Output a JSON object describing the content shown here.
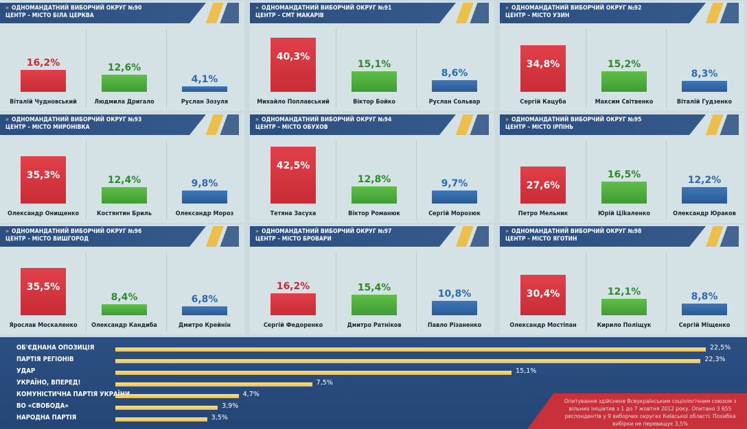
{
  "chart_data": [
    {
      "type": "bar",
      "title": "ОДНОМАНДАТНИЙ ВИБОРЧИЙ ОКРУГ №90",
      "subtitle": "ЦЕНТР – МІСТО БІЛА ЦЕРКВА",
      "categories": [
        "Віталій Чудновський",
        "Людмила Дригало",
        "Руслан Зозуля"
      ],
      "values": [
        16.2,
        12.6,
        4.1
      ],
      "labels": [
        "16,2%",
        "12,6%",
        "4,1%"
      ]
    },
    {
      "type": "bar",
      "title": "ОДНОМАНДАТНИЙ ВИБОРЧИЙ ОКРУГ №91",
      "subtitle": "ЦЕНТР – СМТ МАКАРІВ",
      "categories": [
        "Михайло Поплавський",
        "Віктор Бойко",
        "Руслан Сольвар"
      ],
      "values": [
        40.3,
        15.1,
        8.6
      ],
      "labels": [
        "40,3%",
        "15,1%",
        "8,6%"
      ]
    },
    {
      "type": "bar",
      "title": "ОДНОМАНДАТНИЙ ВИБОРЧИЙ ОКРУГ №92",
      "subtitle": "ЦЕНТР – МІСТО УЗИН",
      "categories": [
        "Сергій Кацуба",
        "Максим Світвенко",
        "Віталій Гудзенко"
      ],
      "values": [
        34.8,
        15.2,
        8.3
      ],
      "labels": [
        "34,8%",
        "15,2%",
        "8,3%"
      ]
    },
    {
      "type": "bar",
      "title": "ОДНОМАНДАТНИЙ ВИБОРЧИЙ ОКРУГ №93",
      "subtitle": "ЦЕНТР – МІСТО МИРОНІВКА",
      "categories": [
        "Олександр Онищенко",
        "Костянтин Бриль",
        "Олександр Мороз"
      ],
      "values": [
        35.3,
        12.4,
        9.8
      ],
      "labels": [
        "35,3%",
        "12,4%",
        "9,8%"
      ]
    },
    {
      "type": "bar",
      "title": "ОДНОМАНДАТНИЙ ВИБОРЧИЙ ОКРУГ №94",
      "subtitle": "ЦЕНТР – МІСТО ОБУХОВ",
      "categories": [
        "Тетяна Засуха",
        "Віктор Романюк",
        "Сергій Морозюк"
      ],
      "values": [
        42.5,
        12.8,
        9.7
      ],
      "labels": [
        "42,5%",
        "12,8%",
        "9,7%"
      ]
    },
    {
      "type": "bar",
      "title": "ОДНОМАНДАТНИЙ ВИБОРЧИЙ ОКРУГ №95",
      "subtitle": "ЦЕНТР – МІСТО ІРПІНЬ",
      "categories": [
        "Петро Мельник",
        "Юрій Ціkаленко",
        "Олександр Юраков"
      ],
      "values": [
        27.6,
        16.5,
        12.2
      ],
      "labels": [
        "27,6%",
        "16,5%",
        "12,2%"
      ]
    },
    {
      "type": "bar",
      "title": "ОДНОМАНДАТНИЙ ВИБОРЧИЙ ОКРУГ №96",
      "subtitle": "ЦЕНТР – МІСТО ВИШГОРОД",
      "categories": [
        "Ярослав Москаленко",
        "Олександр Кандиба",
        "Дмитро Крейнін"
      ],
      "values": [
        35.5,
        8.4,
        6.8
      ],
      "labels": [
        "35,5%",
        "8,4%",
        "6,8%"
      ]
    },
    {
      "type": "bar",
      "title": "ОДНОМАНДАТНИЙ ВИБОРЧИЙ ОКРУГ №97",
      "subtitle": "ЦЕНТР – МІСТО БРОВАРИ",
      "categories": [
        "Сергій Федоренко",
        "Дмитро Ратніков",
        "Павло Різаненко"
      ],
      "values": [
        16.2,
        15.4,
        10.8
      ],
      "labels": [
        "16,2%",
        "15,4%",
        "10,8%"
      ]
    },
    {
      "type": "bar",
      "title": "ОДНОМАНДАТНИЙ ВИБОРЧИЙ ОКРУГ №98",
      "subtitle": "ЦЕНТР – МІСТО ЯГОТИН",
      "categories": [
        "Олександр Мостіпан",
        "Кирило Поліщук",
        "Сергій Міщенко"
      ],
      "values": [
        30.4,
        12.1,
        8.8
      ],
      "labels": [
        "30,4%",
        "12,1%",
        "8,8%"
      ]
    },
    {
      "type": "bar",
      "orientation": "horizontal",
      "categories": [
        "ОБ'ЄДНАНА ОПОЗИЦІЯ",
        "ПАРТІЯ РЕГІОНІВ",
        "УДАР",
        "УКРАЇНО, ВПЕРЕД!",
        "КОМУНІСТИЧНА ПАРТІЯ УКРАЇНИ",
        "ВО «СВОБОДА»",
        "НАРОДНА ПАРТІЯ"
      ],
      "values": [
        22.5,
        22.3,
        15.1,
        7.5,
        4.7,
        3.9,
        3.5
      ],
      "labels": [
        "22,5%",
        "22,3%",
        "15,1%",
        "7,5%",
        "4,7%",
        "3,9%",
        "3,5%"
      ]
    }
  ],
  "colors": {
    "first": "#d6363f",
    "second": "#4fae3e",
    "third": "#2f64a3",
    "header": "#2a4f80",
    "accent": "#f2b92c"
  },
  "icons": {
    "header_marker": "double-chevron-right-icon"
  },
  "header_marker_text": "»",
  "footnote": "Опитування здійснене Всеукраїнським соціологічним союзом з вільних ініціатив з 1 до 7 жовтня 2012 року. Опитано 3 655 респондентів у 9 виборчих округах Київської області. Похибка вибірки не перевищує 3,5%"
}
